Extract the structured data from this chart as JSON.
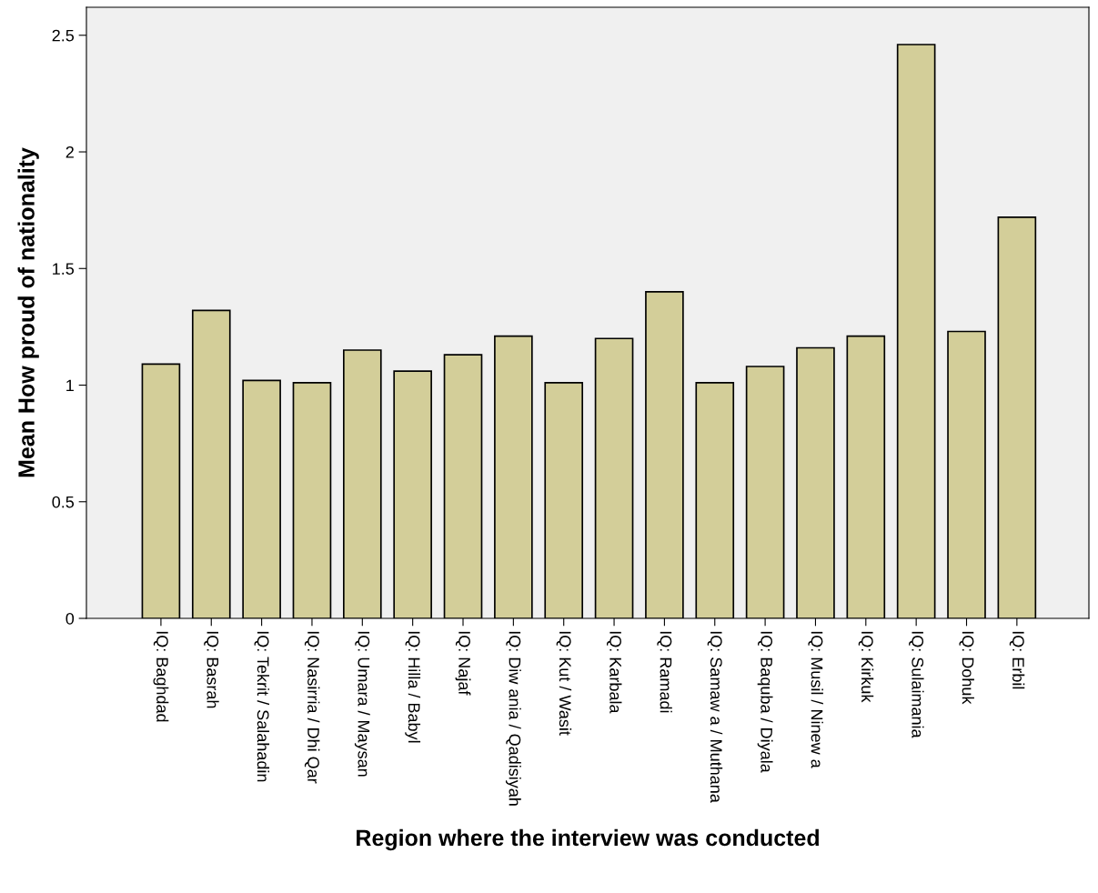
{
  "chart_data": {
    "type": "bar",
    "xlabel": "Region where the interview was conducted",
    "ylabel": "Mean How proud of nationality",
    "categories": [
      "IQ: Baghdad",
      "IQ: Basrah",
      "IQ: Tekrit / Salahadin",
      "IQ: Nasirria / Dhi Qar",
      "IQ: Umara / Maysan",
      "IQ: Hilla / Babyl",
      "IQ: Najaf",
      "IQ: Diw ania / Qadisiyah",
      "IQ: Kut / Wasit",
      "IQ: Karbala",
      "IQ: Ramadi",
      "IQ: Samaw a / Muthana",
      "IQ: Baquba / Diyala",
      "IQ: Musil / Ninew a",
      "IQ: Kirkuk",
      "IQ: Sulaimania",
      "IQ: Dohuk",
      "IQ: Erbil"
    ],
    "values": [
      1.09,
      1.32,
      1.02,
      1.01,
      1.15,
      1.06,
      1.13,
      1.21,
      1.01,
      1.2,
      1.4,
      1.01,
      1.08,
      1.16,
      1.21,
      2.46,
      1.23,
      1.72
    ],
    "color": "#d3ce99",
    "ylim": [
      0,
      2.62
    ],
    "yticks": [
      0,
      0.5,
      1,
      1.5,
      2,
      2.5
    ],
    "grid": false
  }
}
